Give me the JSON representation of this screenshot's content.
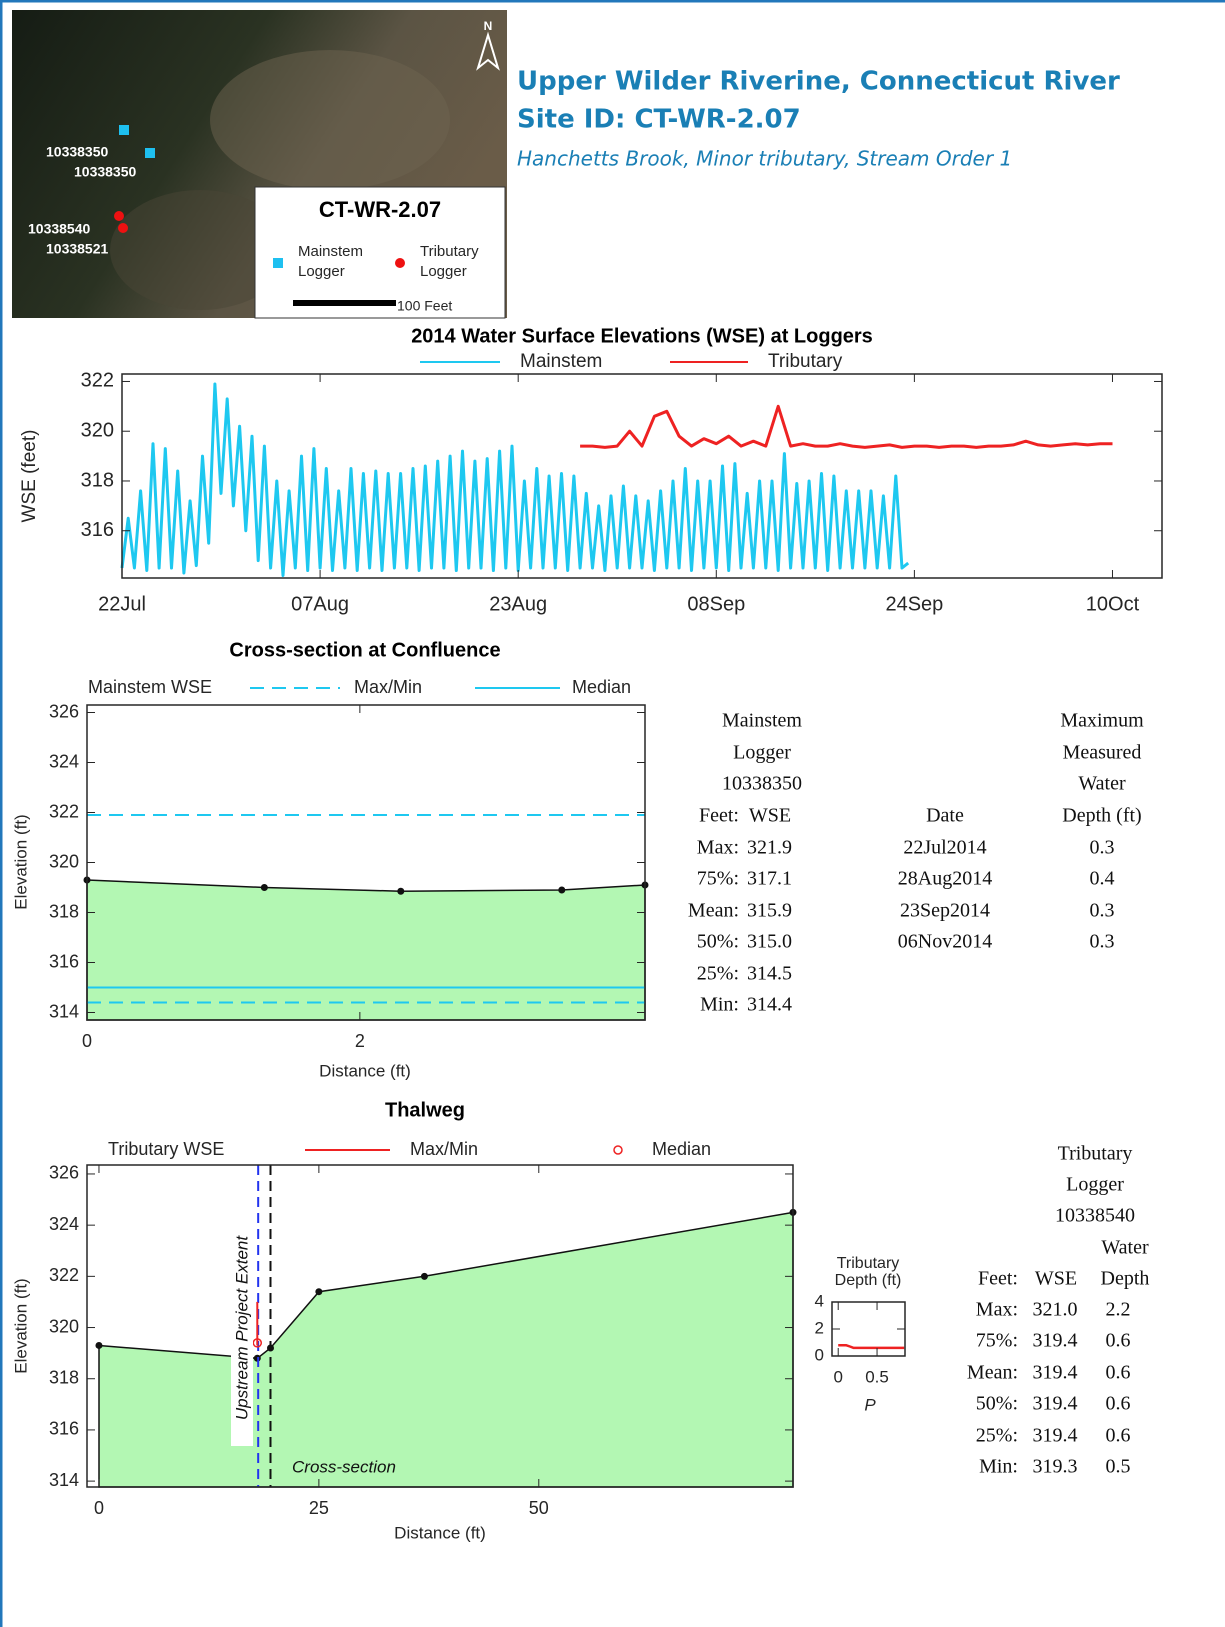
{
  "header": {
    "title": "Upper Wilder Riverine, Connecticut River",
    "site_id": "Site ID: CT-WR-2.07",
    "subtitle": "Hanchetts Brook, Minor tributary, Stream Order 1"
  },
  "map": {
    "north": "N",
    "labels": [
      "10338350",
      "10338350",
      "10338540",
      "10338521"
    ],
    "legend": {
      "title": "CT-WR-2.07",
      "mainstem": [
        "Mainstem",
        "Logger"
      ],
      "tributary": [
        "Tributary",
        "Logger"
      ],
      "scale": "100 Feet"
    }
  },
  "chart_data": [
    {
      "type": "line",
      "title": "2014 Water Surface Elevations (WSE) at Loggers",
      "ylabel": "WSE (feet)",
      "xlim": [
        203,
        287
      ],
      "xticks": [
        {
          "value": 203,
          "label": "22Jul"
        },
        {
          "value": 219,
          "label": "07Aug"
        },
        {
          "value": 235,
          "label": "23Aug"
        },
        {
          "value": 251,
          "label": "08Sep"
        },
        {
          "value": 267,
          "label": "24Sep"
        },
        {
          "value": 283,
          "label": "10Oct"
        }
      ],
      "ylim": [
        314.1,
        322.3
      ],
      "yticks": [
        316,
        318,
        320,
        322
      ],
      "series": [
        {
          "name": "Mainstem",
          "color": "#1ec8f0",
          "x": [
            203,
            203.5,
            204,
            204.5,
            205,
            205.5,
            206,
            206.5,
            207,
            207.5,
            208,
            208.5,
            209,
            209.5,
            210,
            210.5,
            211,
            211.5,
            212,
            212.5,
            213,
            213.5,
            214,
            214.5,
            215,
            215.5,
            216,
            216.5,
            217,
            217.5,
            218,
            218.5,
            219,
            219.5,
            220,
            220.5,
            221,
            221.5,
            222,
            222.5,
            223,
            223.5,
            224,
            224.5,
            225,
            225.5,
            226,
            226.5,
            227,
            227.5,
            228,
            228.5,
            229,
            229.5,
            230,
            230.5,
            231,
            231.5,
            232,
            232.5,
            233,
            233.5,
            234,
            234.5,
            235,
            235.5,
            236,
            236.5,
            237,
            237.5,
            238,
            238.5,
            239,
            239.5,
            240,
            240.5,
            241,
            241.5,
            242,
            242.5,
            243,
            243.5,
            244,
            244.5,
            245,
            245.5,
            246,
            246.5,
            247,
            247.5,
            248,
            248.5,
            249,
            249.5,
            250,
            250.5,
            251,
            251.5,
            252,
            252.5,
            253,
            253.5,
            254,
            254.5,
            255,
            255.5,
            256,
            256.5,
            257,
            257.5,
            258,
            258.5,
            259,
            259.5,
            260,
            260.5,
            261,
            261.5,
            262,
            262.5,
            263,
            263.5,
            264,
            264.5,
            265,
            265.5,
            266,
            266.5
          ],
          "values": [
            314.5,
            316.5,
            314.5,
            317.6,
            314.4,
            319.5,
            314.5,
            319.3,
            314.5,
            318.4,
            314.3,
            317.2,
            314.6,
            319.0,
            315.5,
            321.9,
            317.5,
            321.3,
            317.0,
            320.2,
            316.0,
            319.8,
            314.8,
            319.4,
            314.5,
            318.0,
            314.2,
            317.6,
            314.5,
            319.0,
            314.4,
            319.3,
            314.5,
            318.5,
            314.4,
            317.6,
            314.5,
            318.5,
            314.4,
            318.3,
            314.5,
            318.4,
            314.4,
            318.3,
            314.5,
            318.3,
            314.5,
            318.5,
            314.4,
            318.6,
            314.5,
            318.8,
            314.5,
            319.0,
            314.4,
            319.2,
            314.5,
            318.8,
            314.5,
            318.9,
            314.4,
            319.2,
            314.5,
            319.4,
            314.4,
            318.0,
            314.5,
            318.5,
            314.5,
            318.2,
            314.5,
            318.3,
            314.4,
            318.2,
            314.5,
            317.5,
            314.5,
            317.0,
            314.4,
            317.4,
            314.5,
            317.8,
            314.5,
            317.4,
            314.5,
            317.2,
            314.4,
            317.6,
            314.5,
            318.0,
            314.5,
            318.5,
            314.4,
            318.0,
            314.5,
            318.0,
            314.5,
            318.6,
            314.4,
            318.7,
            314.5,
            317.5,
            314.5,
            318.0,
            314.5,
            318.0,
            314.4,
            319.1,
            314.5,
            317.9,
            314.5,
            318.0,
            314.5,
            318.3,
            314.4,
            318.2,
            314.5,
            317.6,
            314.5,
            317.6,
            314.5,
            317.6,
            314.5,
            317.4,
            314.5,
            318.2,
            314.5,
            314.7
          ]
        },
        {
          "name": "Tributary",
          "color": "#ee2222",
          "x": [
            240,
            241,
            242,
            243,
            244,
            245,
            246,
            247,
            248,
            249,
            250,
            251,
            252,
            253,
            254,
            255,
            256,
            257,
            258,
            259,
            260,
            261,
            262,
            263,
            264,
            265,
            266,
            267,
            268,
            269,
            270,
            271,
            272,
            273,
            274,
            275,
            276,
            277,
            278,
            279,
            280,
            281,
            282,
            283
          ],
          "values": [
            319.4,
            319.4,
            319.35,
            319.4,
            320.0,
            319.4,
            320.6,
            320.8,
            319.8,
            319.4,
            319.7,
            319.5,
            319.8,
            319.4,
            319.6,
            319.4,
            321.0,
            319.4,
            319.5,
            319.4,
            319.4,
            319.5,
            319.4,
            319.35,
            319.4,
            319.45,
            319.35,
            319.4,
            319.4,
            319.35,
            319.4,
            319.4,
            319.35,
            319.4,
            319.4,
            319.45,
            319.6,
            319.45,
            319.4,
            319.45,
            319.5,
            319.45,
            319.5,
            319.5
          ]
        }
      ]
    },
    {
      "type": "area",
      "title": "Cross-section at Confluence",
      "legend_title": "Mainstem WSE",
      "ylabel": "Elevation (ft)",
      "xlabel": "Distance (ft)",
      "xlim": [
        0,
        4.09
      ],
      "xticks": [
        0,
        2
      ],
      "ylim": [
        313.7,
        326.3
      ],
      "yticks": [
        314,
        316,
        318,
        320,
        322,
        324,
        326
      ],
      "ground": {
        "color": "#b3f7b3",
        "x": [
          0,
          1.3,
          2.3,
          3.48,
          4.09
        ],
        "values": [
          319.3,
          319.0,
          318.85,
          318.9,
          319.1
        ]
      },
      "series": [
        {
          "name": "Max/Min",
          "color": "#1ec8f0",
          "dash": true,
          "values": [
            321.9,
            314.4
          ]
        },
        {
          "name": "Median",
          "color": "#1ec8f0",
          "values": [
            315.0
          ]
        }
      ]
    },
    {
      "type": "area",
      "title": "Thalweg",
      "legend_title": "Tributary WSE",
      "ylabel": "Elevation (ft)",
      "xlabel": "Distance (ft)",
      "xlim": [
        -1.36,
        78.9
      ],
      "xticks": [
        0,
        25,
        50
      ],
      "ylim": [
        313.77,
        326.35
      ],
      "yticks": [
        314,
        316,
        318,
        320,
        322,
        324,
        326
      ],
      "ground": {
        "color": "#b3f7b3",
        "x": [
          0,
          18,
          19.5,
          25,
          37,
          78.9
        ],
        "values": [
          319.3,
          318.8,
          319.2,
          321.4,
          322.0,
          324.5
        ]
      },
      "series": [
        {
          "name": "Max/Min",
          "color": "#ee2222",
          "x": [
            18,
            18
          ],
          "values": [
            321.0,
            319.3
          ]
        },
        {
          "name": "Median",
          "color": "#ee2222",
          "marker": "circle",
          "x": [
            18
          ],
          "values": [
            319.4
          ]
        }
      ],
      "vlines": [
        {
          "label": "Upstream Project Extent",
          "x": 18.1,
          "color": "#2233ee"
        },
        {
          "label": "Cross-section",
          "x": 19.5,
          "color": "#111111"
        }
      ]
    },
    {
      "type": "line",
      "title": [
        "Tributary",
        "Depth (ft)"
      ],
      "xlabel": "P",
      "xlim": [
        -0.08,
        0.86
      ],
      "xticks": [
        0,
        0.5
      ],
      "ylim": [
        0,
        4
      ],
      "yticks": [
        0,
        2,
        4
      ],
      "series": [
        {
          "color": "#ee2222",
          "x": [
            0,
            0.05,
            0.1,
            0.15,
            0.2,
            0.85
          ],
          "values": [
            0.8,
            0.8,
            0.8,
            0.7,
            0.6,
            0.6
          ]
        }
      ]
    }
  ],
  "mainstem_table": {
    "title": [
      "Mainstem",
      "Logger",
      "10338350"
    ],
    "columns": [
      "Feet:",
      "WSE"
    ],
    "rows": [
      [
        "Max:",
        "321.9"
      ],
      [
        "75%:",
        "317.1"
      ],
      [
        "Mean:",
        "315.9"
      ],
      [
        "50%:",
        "315.0"
      ],
      [
        "25%:",
        "314.5"
      ],
      [
        "Min:",
        "314.4"
      ]
    ]
  },
  "depth_table": {
    "columns": [
      "Date",
      [
        "Maximum",
        "Measured",
        "Water",
        "Depth (ft)"
      ]
    ],
    "rows": [
      [
        "22Jul2014",
        "0.3"
      ],
      [
        "28Aug2014",
        "0.4"
      ],
      [
        "23Sep2014",
        "0.3"
      ],
      [
        "06Nov2014",
        "0.3"
      ]
    ]
  },
  "tributary_table": {
    "title": [
      "Tributary",
      "Logger",
      "10338540"
    ],
    "column_super": "Water",
    "columns": [
      "Feet:",
      "WSE",
      "Depth"
    ],
    "rows": [
      [
        "Max:",
        "321.0",
        "2.2"
      ],
      [
        "75%:",
        "319.4",
        "0.6"
      ],
      [
        "Mean:",
        "319.4",
        "0.6"
      ],
      [
        "50%:",
        "319.4",
        "0.6"
      ],
      [
        "25%:",
        "319.4",
        "0.6"
      ],
      [
        "Min:",
        "319.3",
        "0.5"
      ]
    ]
  }
}
